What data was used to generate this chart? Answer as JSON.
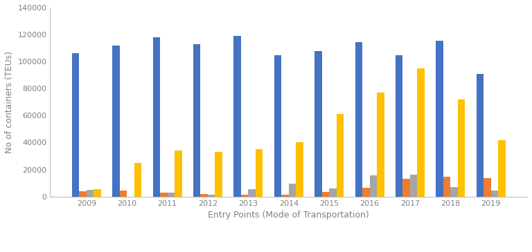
{
  "years": [
    2009,
    2010,
    2011,
    2012,
    2013,
    2014,
    2015,
    2016,
    2017,
    2018,
    2019
  ],
  "padang_besar_rail": [
    106000,
    112000,
    118000,
    113000,
    119000,
    104500,
    107500,
    114500,
    104500,
    115500,
    91000
  ],
  "surat_thani_rail": [
    4000,
    4500,
    3000,
    2000,
    1500,
    1500,
    3500,
    6500,
    13000,
    14500,
    13500
  ],
  "padang_besar_road": [
    5000,
    0,
    3000,
    1500,
    5500,
    9500,
    6000,
    15500,
    16000,
    7000,
    4500
  ],
  "bukit_kayu_hitam": [
    5500,
    25000,
    34000,
    33000,
    35000,
    40000,
    61000,
    77000,
    95000,
    72000,
    42000
  ],
  "colors": {
    "padang_besar_rail": "#4472C4",
    "surat_thani_rail": "#ED7D31",
    "padang_besar_road": "#A5A5A5",
    "bukit_kayu_hitam": "#FFC000"
  },
  "xlabel": "Entry Points (Mode of Transportation)",
  "ylabel": "No of containers (TEUs)",
  "ylim": [
    0,
    140000
  ],
  "yticks": [
    0,
    20000,
    40000,
    60000,
    80000,
    100000,
    120000,
    140000
  ],
  "bar_width": 0.18,
  "axis_color": "#BFBFBF",
  "text_color": "#808080",
  "label_fontsize": 9,
  "tick_fontsize": 8
}
